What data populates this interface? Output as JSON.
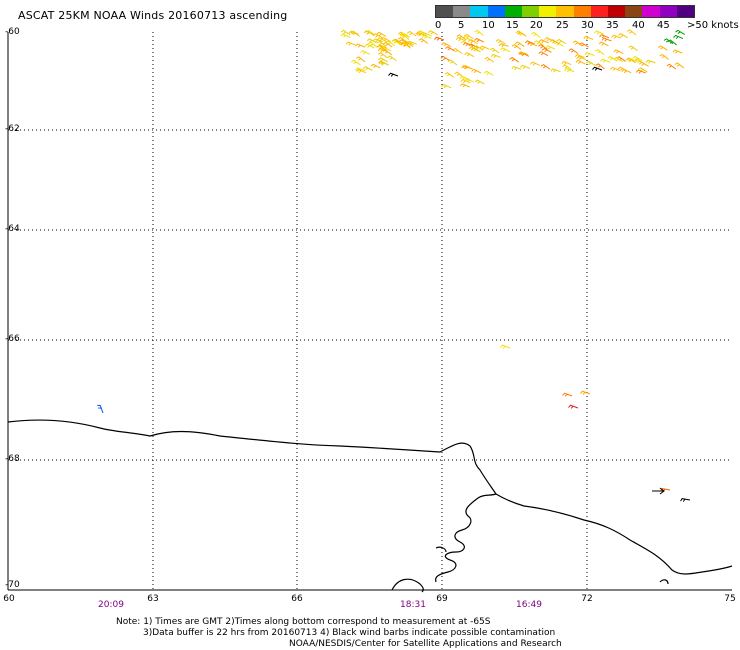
{
  "title": "ASCAT 25KM NOAA Winds 20160713 ascending",
  "colorbar": {
    "colors": [
      "#505050",
      "#8a8a8a",
      "#00c8f0",
      "#0070ff",
      "#00b000",
      "#80d000",
      "#f0f000",
      "#ffc000",
      "#ff8000",
      "#ff2020",
      "#c00000",
      "#8b4513",
      "#d000d0",
      "#9000c0",
      "#500080"
    ],
    "labels": [
      "0",
      "5",
      "10",
      "15",
      "20",
      "25",
      "30",
      "35",
      "40",
      "45",
      ">50 knots"
    ]
  },
  "axes": {
    "y_labels": [
      "-60",
      "-62",
      "-64",
      "-66",
      "-68",
      "-70"
    ],
    "x_labels": [
      "60",
      "63",
      "66",
      "69",
      "72",
      "75"
    ]
  },
  "times": [
    "20:09",
    "18:31",
    "16:49"
  ],
  "notes": {
    "line1": "Note: 1) Times are GMT 2)Times along bottom correspond to measurement at -65S",
    "line2": "3)Data buffer is 22 hrs from 20160713 4) Black wind barbs indicate possible contamination",
    "line3": "NOAA/NESDIS/Center for Satellite Applications and Research"
  }
}
